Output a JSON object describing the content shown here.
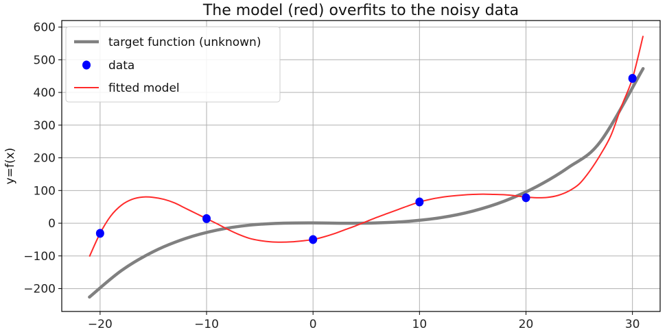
{
  "chart_data": {
    "type": "line",
    "title": "The model (red) overfits to the noisy data",
    "xlabel": "",
    "ylabel": "y=f(x)",
    "xlim": [
      -23.6,
      32.6
    ],
    "ylim": [
      -270,
      620
    ],
    "xticks": [
      -20,
      -10,
      0,
      10,
      20,
      30
    ],
    "yticks": [
      -200,
      -100,
      0,
      100,
      200,
      300,
      400,
      500,
      600
    ],
    "xtick_labels": [
      "−20",
      "−10",
      "0",
      "10",
      "20",
      "30"
    ],
    "ytick_labels": [
      "−200",
      "−100",
      "0",
      "100",
      "200",
      "300",
      "400",
      "500",
      "600"
    ],
    "grid": true,
    "legend_position": "top-left",
    "series": [
      {
        "name": "target function (unknown)",
        "style": "line",
        "color": "#808080",
        "x": [
          -21,
          -18,
          -15,
          -12,
          -9,
          -6,
          -3,
          0,
          3,
          6,
          9,
          12,
          15,
          18,
          21,
          24,
          27,
          31
        ],
        "y": [
          -226,
          -145,
          -87,
          -47,
          -21,
          -6,
          0,
          1,
          0,
          1,
          6,
          17,
          37,
          68,
          112,
          171,
          250,
          473
        ]
      },
      {
        "name": "data",
        "style": "scatter",
        "color": "#0000ff",
        "x": [
          -20,
          -10,
          0,
          10,
          20,
          30
        ],
        "y": [
          -31,
          14,
          -50,
          65,
          78,
          443
        ]
      },
      {
        "name": "fitted model",
        "style": "line",
        "color": "#ff2a2a",
        "x": [
          -21,
          -20,
          -19,
          -18,
          -17,
          -16,
          -15,
          -14,
          -13,
          -12,
          -11,
          -10,
          -9,
          -8,
          -7,
          -6,
          -5,
          -4,
          -3,
          -2,
          -1,
          0,
          1,
          2,
          3,
          4,
          5,
          6,
          7,
          8,
          9,
          10,
          11,
          12,
          13,
          14,
          15,
          16,
          17,
          18,
          19,
          20,
          21,
          22,
          23,
          24,
          25,
          26,
          27,
          28,
          29,
          30,
          31
        ],
        "y": [
          -102,
          -31,
          22,
          55,
          73,
          80,
          79,
          73,
          62,
          46,
          30,
          14,
          -2,
          -19,
          -34,
          -46,
          -53,
          -57,
          -58,
          -57,
          -54,
          -50,
          -42,
          -32,
          -20,
          -8,
          5,
          18,
          30,
          42,
          54,
          65,
          73,
          79,
          83,
          86,
          88,
          89,
          88,
          87,
          84,
          80,
          78,
          79,
          85,
          98,
          120,
          160,
          210,
          270,
          360,
          443,
          573
        ]
      }
    ]
  }
}
